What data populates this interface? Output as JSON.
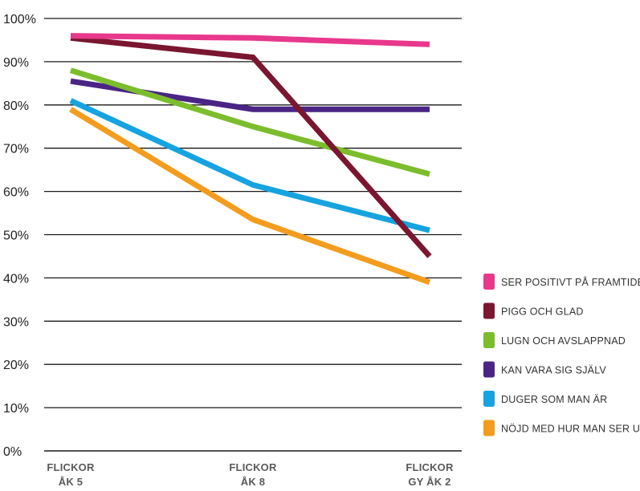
{
  "chart_data": {
    "type": "line",
    "title": "",
    "xlabel": "",
    "ylabel": "",
    "categories": [
      "FLICKOR ÅK 5",
      "FLICKOR ÅK 8",
      "FLICKOR GY ÅK 2"
    ],
    "category_lines": [
      [
        "FLICKOR",
        "ÅK 5"
      ],
      [
        "FLICKOR",
        "ÅK 8"
      ],
      [
        "FLICKOR",
        "GY ÅK 2"
      ]
    ],
    "y_ticks": [
      "0%",
      "10%",
      "20%",
      "30%",
      "40%",
      "50%",
      "60%",
      "70%",
      "80%",
      "90%",
      "100%"
    ],
    "ylim": [
      0,
      100
    ],
    "grid": true,
    "legend_position": "right",
    "series": [
      {
        "name": "SER POSITIVT PÅ FRAMTIDEN",
        "color": "#e8388c",
        "values": [
          96,
          95.5,
          94
        ]
      },
      {
        "name": "PIGG OCH GLAD",
        "color": "#7a1630",
        "values": [
          95.5,
          91,
          45
        ]
      },
      {
        "name": "LUGN OCH AVSLAPPNAD",
        "color": "#7cbd2c",
        "values": [
          88,
          75,
          64
        ]
      },
      {
        "name": "KAN VARA SIG SJÄLV",
        "color": "#4a2585",
        "values": [
          85.5,
          79,
          79
        ]
      },
      {
        "name": "DUGER SOM MAN ÄR",
        "color": "#16a3e0",
        "values": [
          81,
          61.5,
          51
        ]
      },
      {
        "name": "NÖJD MED HUR MAN SER UT",
        "color": "#f39c1e",
        "values": [
          79,
          53.5,
          39
        ]
      }
    ]
  }
}
